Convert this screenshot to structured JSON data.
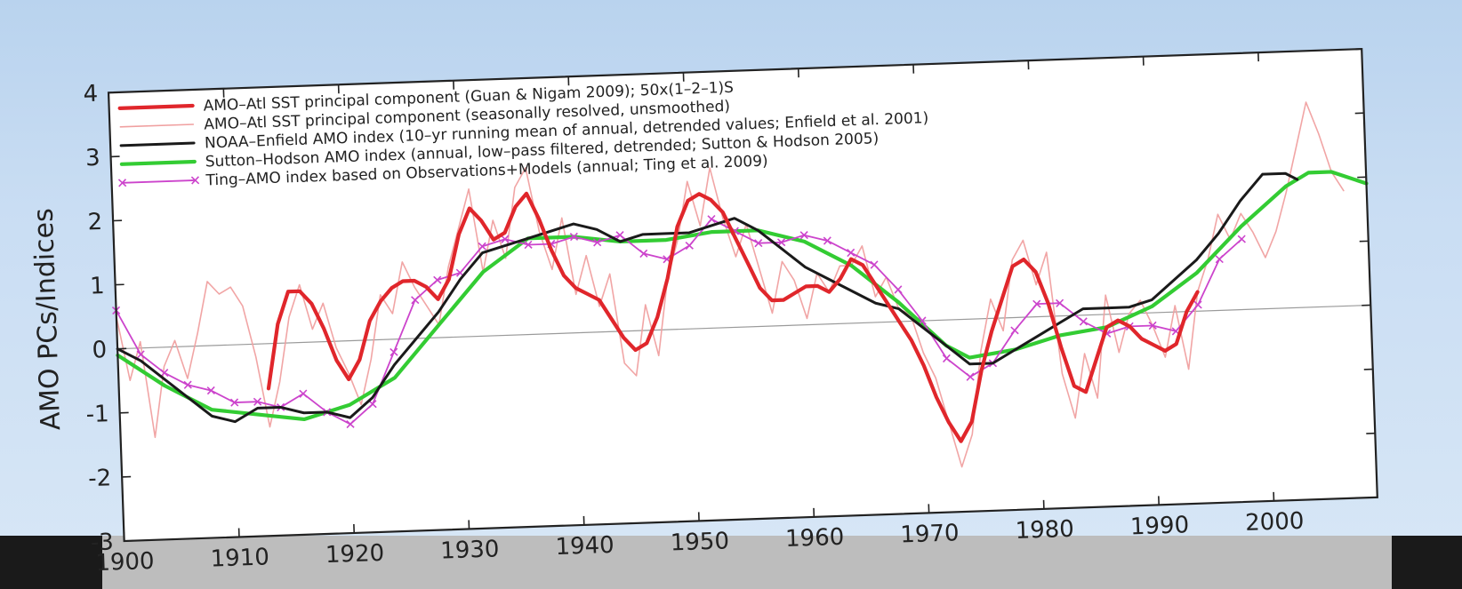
{
  "chart_data": {
    "type": "line",
    "title": "",
    "xlabel": "",
    "ylabel": "AMO PCs/Indices",
    "xlim": [
      1900,
      2009
    ],
    "ylim": [
      -3,
      4
    ],
    "x_ticks": [
      1900,
      1910,
      1920,
      1930,
      1940,
      1950,
      1960,
      1970,
      1980,
      1990,
      2000
    ],
    "y_ticks": [
      -3,
      -2,
      -1,
      0,
      1,
      2,
      3,
      4
    ],
    "legend_position": "top-left",
    "zero_line": true,
    "series": [
      {
        "name": "AMO–Atl SST principal component (Guan & Nigam 2009); 50x(1–2–1)S",
        "color": "#e0262b",
        "style": "thick",
        "x": [
          1913,
          1914,
          1915,
          1916,
          1917,
          1918,
          1919,
          1920,
          1921,
          1922,
          1923,
          1924,
          1925,
          1926,
          1927,
          1928,
          1929,
          1930,
          1931,
          1932,
          1933,
          1934,
          1935,
          1936,
          1937,
          1938,
          1939,
          1940,
          1941,
          1942,
          1943,
          1944,
          1945,
          1946,
          1947,
          1948,
          1949,
          1950,
          1951,
          1952,
          1953,
          1954,
          1955,
          1956,
          1957,
          1958,
          1959,
          1960,
          1961,
          1962,
          1963,
          1964,
          1965,
          1966,
          1967,
          1968,
          1969,
          1970,
          1971,
          1972,
          1973,
          1974,
          1975,
          1976,
          1977,
          1978,
          1979,
          1980,
          1981,
          1982,
          1983,
          1984,
          1985,
          1986,
          1987,
          1988,
          1989,
          1990,
          1991,
          1992,
          1993,
          1994
        ],
        "y": [
          -0.7,
          0.3,
          0.8,
          0.8,
          0.6,
          0.2,
          -0.3,
          -0.6,
          -0.3,
          0.3,
          0.6,
          0.8,
          0.9,
          0.9,
          0.8,
          0.6,
          0.9,
          1.6,
          2.0,
          1.8,
          1.5,
          1.6,
          2.0,
          2.2,
          1.8,
          1.3,
          0.9,
          0.7,
          0.6,
          0.5,
          0.2,
          -0.1,
          -0.3,
          -0.2,
          0.2,
          0.8,
          1.6,
          2.0,
          2.1,
          2.0,
          1.8,
          1.4,
          1.0,
          0.6,
          0.4,
          0.4,
          0.5,
          0.6,
          0.6,
          0.5,
          0.7,
          1.0,
          0.9,
          0.6,
          0.3,
          0.0,
          -0.3,
          -0.7,
          -1.2,
          -1.6,
          -1.9,
          -1.6,
          -0.8,
          -0.2,
          0.3,
          0.8,
          0.9,
          0.7,
          0.2,
          -0.5,
          -1.1,
          -1.2,
          -0.7,
          -0.2,
          -0.1,
          -0.2,
          -0.4,
          -0.5,
          -0.6,
          -0.5,
          0.0,
          0.3
        ]
      },
      {
        "name": "AMO–Atl SST principal component (seasonally resolved, unsmoothed)",
        "color": "#f0a0a0",
        "style": "thin",
        "x": [
          1900,
          1901,
          1902,
          1903,
          1904,
          1905,
          1906,
          1907,
          1908,
          1909,
          1910,
          1911,
          1912,
          1913,
          1914,
          1915,
          1916,
          1917,
          1918,
          1919,
          1920,
          1921,
          1922,
          1923,
          1924,
          1925,
          1926,
          1927,
          1928,
          1929,
          1930,
          1931,
          1932,
          1933,
          1934,
          1935,
          1936,
          1937,
          1938,
          1939,
          1940,
          1941,
          1942,
          1943,
          1944,
          1945,
          1946,
          1947,
          1948,
          1949,
          1950,
          1951,
          1952,
          1953,
          1954,
          1955,
          1956,
          1957,
          1958,
          1959,
          1960,
          1961,
          1962,
          1963,
          1964,
          1965,
          1966,
          1967,
          1968,
          1969,
          1970,
          1971,
          1972,
          1973,
          1974,
          1975,
          1976,
          1977,
          1978,
          1979,
          1980,
          1981,
          1982,
          1983,
          1984,
          1985,
          1986,
          1987,
          1988,
          1989,
          1990,
          1991,
          1992,
          1993,
          1994,
          1995,
          1996,
          1997,
          1998,
          1999,
          2000,
          2001,
          2002,
          2003,
          2004,
          2005,
          2006,
          2007
        ],
        "y": [
          0.5,
          -0.5,
          0.1,
          -1.4,
          -0.3,
          0.1,
          -0.5,
          0.2,
          1.0,
          0.8,
          0.9,
          0.6,
          -0.2,
          -1.3,
          -0.6,
          0.4,
          0.9,
          0.2,
          0.6,
          -0.1,
          -0.5,
          -1.0,
          -0.3,
          0.7,
          0.4,
          1.2,
          0.8,
          0.5,
          0.2,
          1.1,
          1.7,
          2.3,
          1.0,
          1.8,
          1.2,
          2.3,
          2.6,
          1.6,
          1.0,
          1.8,
          0.6,
          1.2,
          0.4,
          0.9,
          -0.5,
          -0.7,
          0.4,
          -0.4,
          0.8,
          1.4,
          2.3,
          1.6,
          2.5,
          1.7,
          1.1,
          1.6,
          0.9,
          0.2,
          1.0,
          0.7,
          0.1,
          0.8,
          0.5,
          0.9,
          0.9,
          1.2,
          0.4,
          0.7,
          0.2,
          0.1,
          -0.5,
          -0.9,
          -1.6,
          -2.3,
          -1.8,
          -0.5,
          0.3,
          -0.2,
          0.9,
          1.2,
          0.5,
          1.0,
          -0.9,
          -1.6,
          -0.6,
          -1.3,
          0.3,
          -0.6,
          0.0,
          0.2,
          -0.2,
          -0.7,
          0.1,
          -0.9,
          0.3,
          0.8,
          1.5,
          1.1,
          1.5,
          1.2,
          0.8,
          1.2,
          1.8,
          2.5,
          3.2,
          2.7,
          2.1,
          1.8
        ]
      },
      {
        "name": "NOAA–Enfield AMO index (10–yr running mean of annual, detrended values; Enfield et al. 2001)",
        "color": "#1a1a1a",
        "style": "medium",
        "x": [
          1900,
          1902,
          1904,
          1906,
          1908,
          1910,
          1912,
          1914,
          1916,
          1918,
          1920,
          1922,
          1924,
          1926,
          1928,
          1930,
          1932,
          1934,
          1936,
          1938,
          1940,
          1942,
          1944,
          1946,
          1948,
          1950,
          1952,
          1954,
          1956,
          1958,
          1960,
          1962,
          1964,
          1966,
          1968,
          1970,
          1972,
          1974,
          1976,
          1978,
          1980,
          1982,
          1984,
          1986,
          1988,
          1990,
          1992,
          1994,
          1996,
          1998,
          2000,
          2002,
          2003
        ],
        "y": [
          0.0,
          -0.2,
          -0.5,
          -0.8,
          -1.1,
          -1.2,
          -1.0,
          -1.0,
          -1.1,
          -1.1,
          -1.2,
          -0.9,
          -0.4,
          0.0,
          0.4,
          0.9,
          1.3,
          1.4,
          1.5,
          1.6,
          1.7,
          1.6,
          1.4,
          1.5,
          1.5,
          1.5,
          1.6,
          1.7,
          1.5,
          1.2,
          0.9,
          0.7,
          0.5,
          0.3,
          0.2,
          -0.1,
          -0.4,
          -0.7,
          -0.7,
          -0.5,
          -0.3,
          -0.1,
          0.1,
          0.1,
          0.1,
          0.2,
          0.5,
          0.8,
          1.2,
          1.7,
          2.1,
          2.1,
          2.0
        ]
      },
      {
        "name": "Sutton–Hodson AMO index (annual, low–pass filtered, detrended; Sutton & Hodson 2005)",
        "color": "#33cc33",
        "style": "thick",
        "x": [
          1900,
          1904,
          1908,
          1912,
          1916,
          1920,
          1924,
          1928,
          1932,
          1936,
          1940,
          1944,
          1948,
          1952,
          1956,
          1960,
          1964,
          1968,
          1972,
          1974,
          1978,
          1982,
          1986,
          1990,
          1994,
          1998,
          2002,
          2004,
          2006,
          2009
        ],
        "y": [
          -0.1,
          -0.6,
          -1.0,
          -1.1,
          -1.2,
          -1.0,
          -0.6,
          0.2,
          1.0,
          1.5,
          1.5,
          1.4,
          1.4,
          1.5,
          1.5,
          1.3,
          0.9,
          0.3,
          -0.4,
          -0.6,
          -0.5,
          -0.3,
          -0.2,
          0.1,
          0.6,
          1.3,
          1.9,
          2.1,
          2.1,
          1.9
        ]
      },
      {
        "name": "Ting–AMO index based on Observations+Models (annual; Ting et al. 2009)",
        "color": "#cc44cc",
        "style": "marker-x",
        "x": [
          1900,
          1902,
          1904,
          1906,
          1908,
          1910,
          1912,
          1914,
          1916,
          1918,
          1920,
          1922,
          1924,
          1926,
          1928,
          1930,
          1932,
          1934,
          1936,
          1938,
          1940,
          1942,
          1944,
          1946,
          1948,
          1950,
          1952,
          1954,
          1956,
          1958,
          1960,
          1962,
          1964,
          1966,
          1968,
          1970,
          1972,
          1974,
          1976,
          1978,
          1980,
          1982,
          1984,
          1986,
          1988,
          1990,
          1992,
          1994,
          1996,
          1998
        ],
        "y": [
          0.6,
          -0.1,
          -0.4,
          -0.6,
          -0.7,
          -0.9,
          -0.9,
          -1.0,
          -0.8,
          -1.1,
          -1.3,
          -1.0,
          -0.2,
          0.6,
          0.9,
          1.0,
          1.4,
          1.5,
          1.4,
          1.4,
          1.5,
          1.4,
          1.5,
          1.2,
          1.1,
          1.3,
          1.7,
          1.5,
          1.3,
          1.3,
          1.4,
          1.3,
          1.1,
          0.9,
          0.5,
          0.0,
          -0.6,
          -0.9,
          -0.7,
          -0.2,
          0.2,
          0.2,
          -0.1,
          -0.3,
          -0.2,
          -0.2,
          -0.3,
          0.1,
          0.8,
          1.1
        ]
      }
    ]
  }
}
